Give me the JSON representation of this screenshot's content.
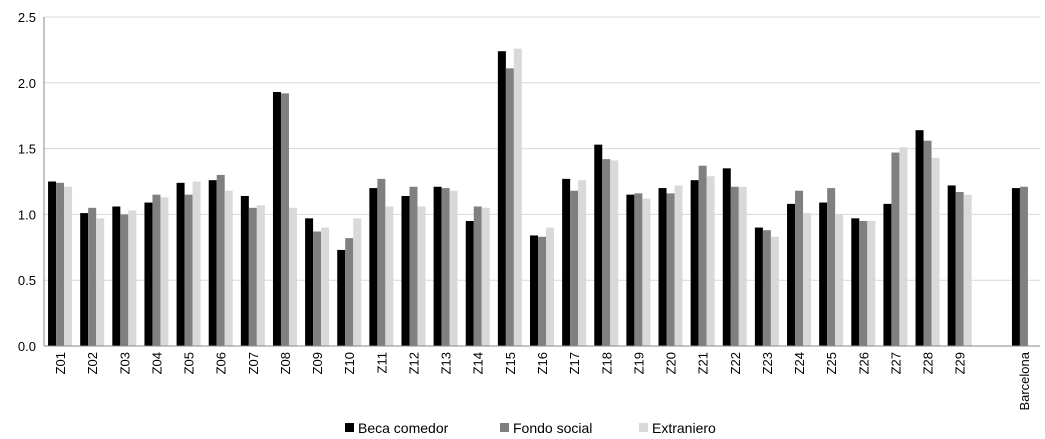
{
  "chart_data": {
    "type": "bar",
    "categories": [
      "Z01",
      "Z02",
      "Z03",
      "Z04",
      "Z05",
      "Z06",
      "Z07",
      "Z08",
      "Z09",
      "Z10",
      "Z11",
      "Z12",
      "Z13",
      "Z14",
      "Z15",
      "Z16",
      "Z17",
      "Z18",
      "Z19",
      "Z20",
      "Z21",
      "Z22",
      "Z23",
      "Z24",
      "Z25",
      "Z26",
      "Z27",
      "Z28",
      "Z29",
      "",
      "Barcelona"
    ],
    "series": [
      {
        "name": "Beca comedor",
        "color": "#000000",
        "values": [
          1.25,
          1.01,
          1.06,
          1.09,
          1.24,
          1.26,
          1.14,
          1.93,
          0.97,
          0.73,
          1.2,
          1.14,
          1.21,
          0.95,
          2.24,
          0.84,
          1.27,
          1.53,
          1.15,
          1.2,
          1.26,
          1.35,
          0.9,
          1.08,
          1.09,
          0.97,
          1.08,
          1.64,
          1.22,
          null,
          1.2
        ]
      },
      {
        "name": "Fondo social",
        "color": "#808080",
        "values": [
          1.24,
          1.05,
          1.0,
          1.15,
          1.15,
          1.3,
          1.05,
          1.92,
          0.87,
          0.82,
          1.27,
          1.21,
          1.2,
          1.06,
          2.11,
          0.83,
          1.18,
          1.42,
          1.16,
          1.16,
          1.37,
          1.21,
          0.88,
          1.18,
          1.2,
          0.95,
          1.47,
          1.56,
          1.17,
          null,
          1.21
        ]
      },
      {
        "name": "Extraniero",
        "color": "#d9d9d9",
        "values": [
          1.21,
          0.97,
          1.03,
          1.13,
          1.25,
          1.18,
          1.07,
          1.05,
          0.9,
          0.97,
          1.06,
          1.06,
          1.18,
          1.05,
          2.26,
          0.9,
          1.26,
          1.41,
          1.12,
          1.22,
          1.29,
          1.21,
          0.83,
          1.01,
          1.0,
          0.95,
          1.51,
          1.43,
          1.15,
          null,
          null
        ]
      }
    ],
    "yticks": [
      "0.0",
      "0.5",
      "1.0",
      "1.5",
      "2.0",
      "2.5"
    ],
    "ylim": [
      0,
      2.5
    ],
    "grid": true,
    "legend": "bottom"
  }
}
